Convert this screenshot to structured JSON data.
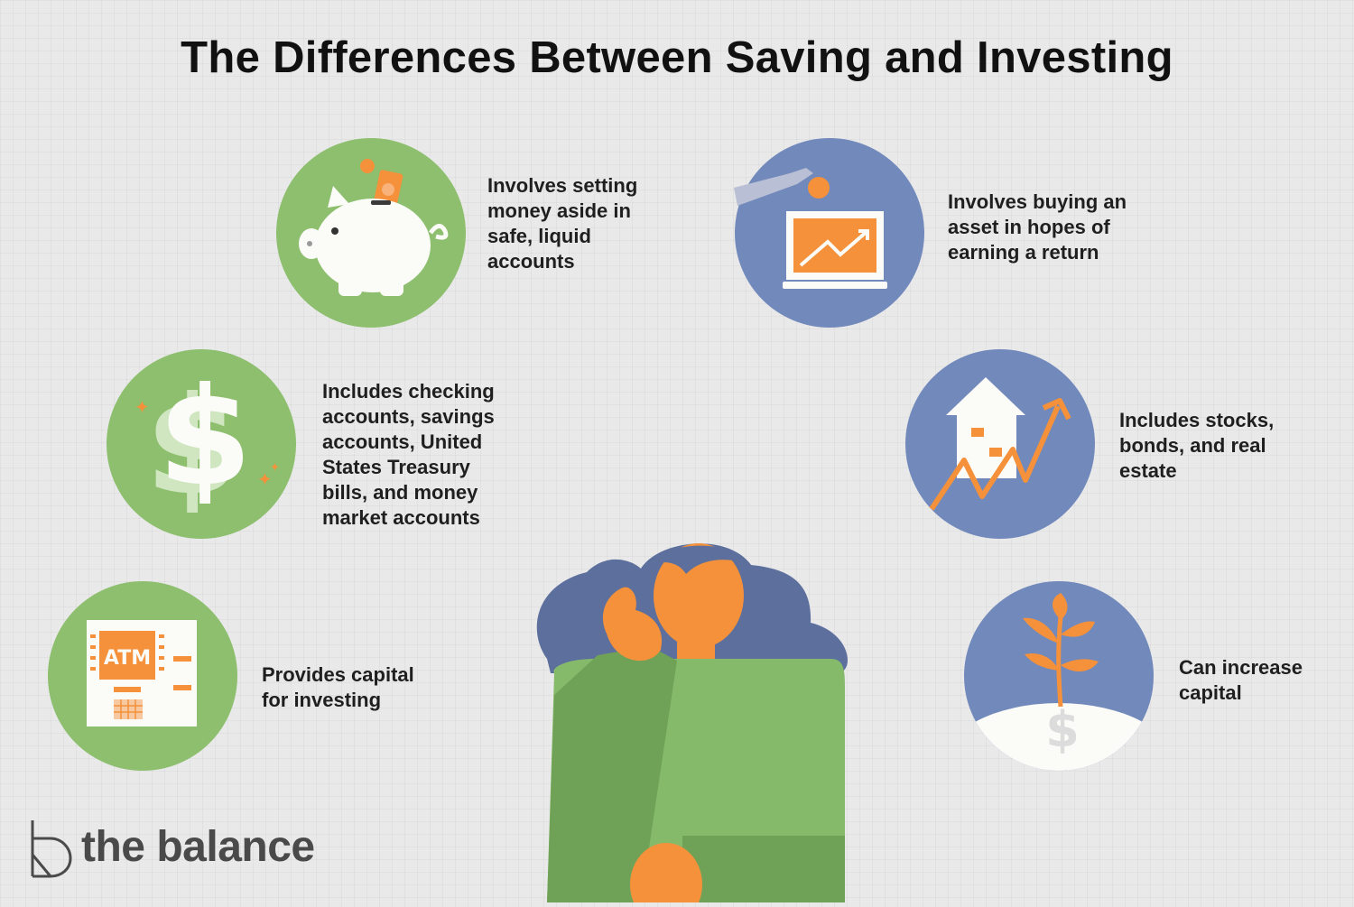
{
  "title": "The Differences Between Saving and Investing",
  "colors": {
    "saving_green": "#8dbf6e",
    "investing_blue": "#7289bb",
    "accent_orange": "#f4913a",
    "background": "#e9e9ea"
  },
  "saving": [
    {
      "icon": "piggy-bank-icon",
      "text": "Involves setting\nmoney aside in\nsafe, liquid\naccounts"
    },
    {
      "icon": "dollar-sign-icon",
      "text": "Includes checking\naccounts, savings\naccounts, United\nStates Treasury\nbills, and money\nmarket accounts"
    },
    {
      "icon": "atm-icon",
      "text": "Provides capital\nfor investing"
    }
  ],
  "investing": [
    {
      "icon": "laptop-chart-icon",
      "text": "Involves buying an\nasset in hopes of\nearning a return"
    },
    {
      "icon": "house-growth-icon",
      "text": "Includes stocks,\nbonds, and real\nestate"
    },
    {
      "icon": "plant-money-icon",
      "text": "Can increase\ncapital"
    }
  ],
  "atm_label": "ATM",
  "brand": {
    "name": "the balance"
  }
}
